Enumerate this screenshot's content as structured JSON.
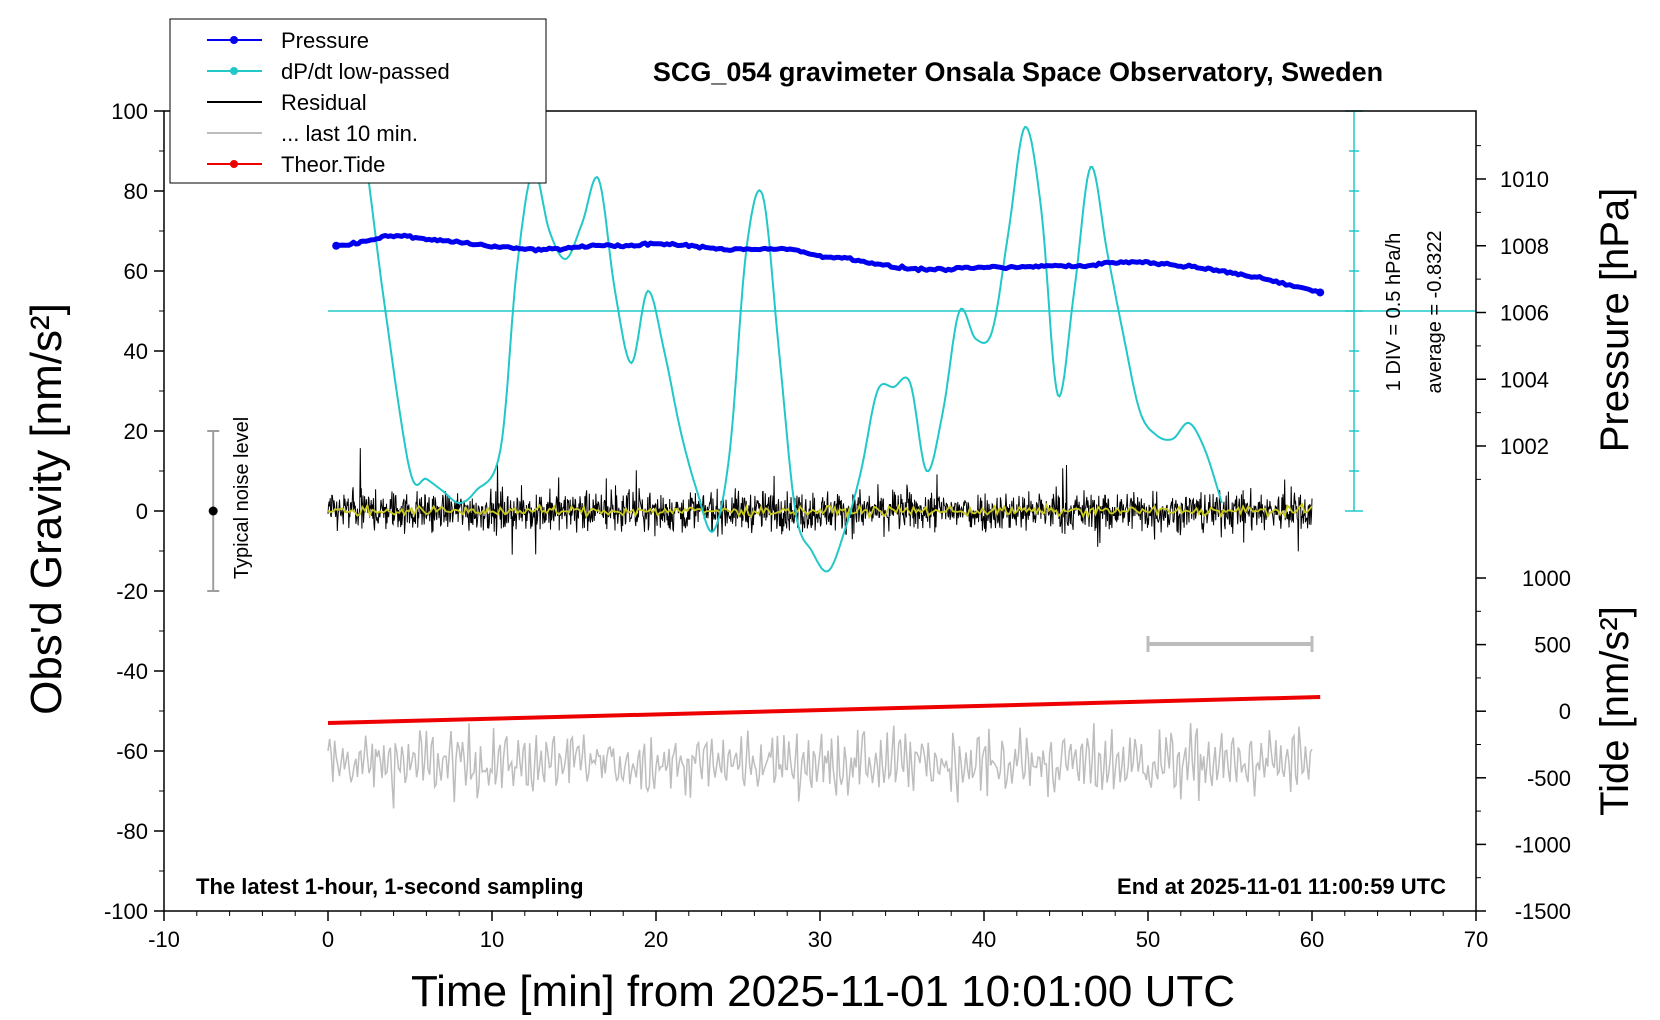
{
  "chart_data": {
    "type": "line",
    "title": "SCG_054 gravimeter Onsala Space Observatory, Sweden",
    "xlabel": "Time [min] from 2025-11-01 10:01:00 UTC",
    "ylabel_left": "Obs'd Gravity [nm/s²]",
    "ylabel_pressure": "Pressure [hPa]",
    "ylabel_tide": "Tide [nm/s²]",
    "xlim": [
      -10,
      70
    ],
    "ylim": [
      -100,
      100
    ],
    "x_ticks": [
      "-10",
      "0",
      "10",
      "20",
      "30",
      "40",
      "50",
      "60",
      "70"
    ],
    "y_ticks": [
      "100",
      "80",
      "60",
      "40",
      "20",
      "0",
      "-20",
      "-40",
      "-60",
      "-80",
      "-100"
    ],
    "pressure_ticks": [
      "1010",
      "1008",
      "1006",
      "1004",
      "1002"
    ],
    "pressure_range": [
      1000,
      1012
    ],
    "tide_ticks": [
      "1000",
      "500",
      "0",
      "-500",
      "-1000",
      "-1500"
    ],
    "tide_range": [
      -1500,
      1000
    ],
    "legend": [
      {
        "name": "Pressure",
        "color": "#0000ee",
        "marker": true
      },
      {
        "name": "dP/dt low-passed",
        "color": "#22c8c8",
        "marker": true
      },
      {
        "name": "Residual",
        "color": "#000000",
        "marker": false
      },
      {
        "name": "... last 10 min.",
        "color": "#bdbdbd",
        "marker": false
      },
      {
        "name": "Theor.Tide",
        "color": "#ee0000",
        "marker": true
      }
    ],
    "series": {
      "pressure": {
        "name": "Pressure",
        "color": "#0000ee",
        "x": [
          0.5,
          2,
          4,
          6,
          8,
          10,
          12,
          14,
          16,
          18,
          20,
          22,
          24,
          26,
          28,
          30,
          32,
          34,
          36,
          38,
          40,
          42,
          44,
          46,
          48,
          50,
          52,
          54,
          56,
          58,
          60.5
        ],
        "y": [
          1008.0,
          1008.1,
          1008.3,
          1008.2,
          1008.1,
          1008.0,
          1007.9,
          1007.9,
          1008.0,
          1008.0,
          1008.05,
          1008.0,
          1007.9,
          1007.9,
          1007.9,
          1007.7,
          1007.6,
          1007.4,
          1007.3,
          1007.3,
          1007.35,
          1007.35,
          1007.4,
          1007.4,
          1007.5,
          1007.5,
          1007.4,
          1007.3,
          1007.1,
          1006.9,
          1006.6
        ]
      },
      "dpdt": {
        "name": "dP/dt low-passed",
        "color": "#22c8c8",
        "baseline_y": 50,
        "x": [
          2.5,
          3.5,
          5,
          6,
          7,
          8,
          9,
          10.5,
          11.5,
          12.5,
          13.5,
          14.5,
          15.5,
          16.5,
          17.5,
          18.5,
          19.5,
          20.5,
          21.5,
          22.5,
          23.5,
          24.5,
          25.5,
          26.5,
          27.5,
          28.5,
          29.5,
          30.5,
          31.5,
          32.5,
          33.5,
          34.5,
          35.5,
          36.5,
          37.5,
          38.5,
          39.5,
          40.5,
          41.5,
          42.5,
          43.5,
          44.5,
          45.5,
          46.5,
          47.5,
          48.5,
          49.5,
          50.5,
          51.5,
          52.5,
          53.5,
          54.5
        ],
        "y": [
          82,
          50,
          10,
          8,
          5,
          2,
          5,
          15,
          60,
          85,
          70,
          63,
          72,
          83,
          55,
          37,
          55,
          40,
          20,
          5,
          -5,
          15,
          65,
          79,
          40,
          0,
          -10,
          -15,
          -5,
          10,
          30,
          31,
          32,
          10,
          25,
          50,
          43,
          45,
          70,
          96,
          75,
          29,
          55,
          86,
          65,
          44,
          25,
          19,
          18,
          22,
          15,
          2
        ]
      },
      "residual": {
        "name": "Residual",
        "color": "#000000",
        "x_range": [
          0,
          60
        ],
        "amplitude": 10
      },
      "residual_smoothed": {
        "color": "#c8c81e",
        "x_range": [
          0,
          60
        ]
      },
      "tide": {
        "name": "Theor.Tide",
        "color": "#ee0000",
        "x": [
          0,
          60.5
        ],
        "y": [
          -53,
          -46.5
        ]
      },
      "last_10_min": {
        "name": "... last 10 min.",
        "color": "#bdbdbd",
        "x_range": [
          0,
          60
        ],
        "center_y": -63
      }
    },
    "annotations": {
      "noise_label": "Typical noise level",
      "noise_bar_range": [
        -20,
        20
      ],
      "scale_label": "1 DIV = 0.5 hPa/h",
      "average_label": "average = -0.8322",
      "footer_left": "The latest 1-hour, 1-second sampling",
      "footer_right": "End at 2025-11-01 11:00:59 UTC",
      "last10_bar_x": [
        50,
        60
      ]
    }
  }
}
